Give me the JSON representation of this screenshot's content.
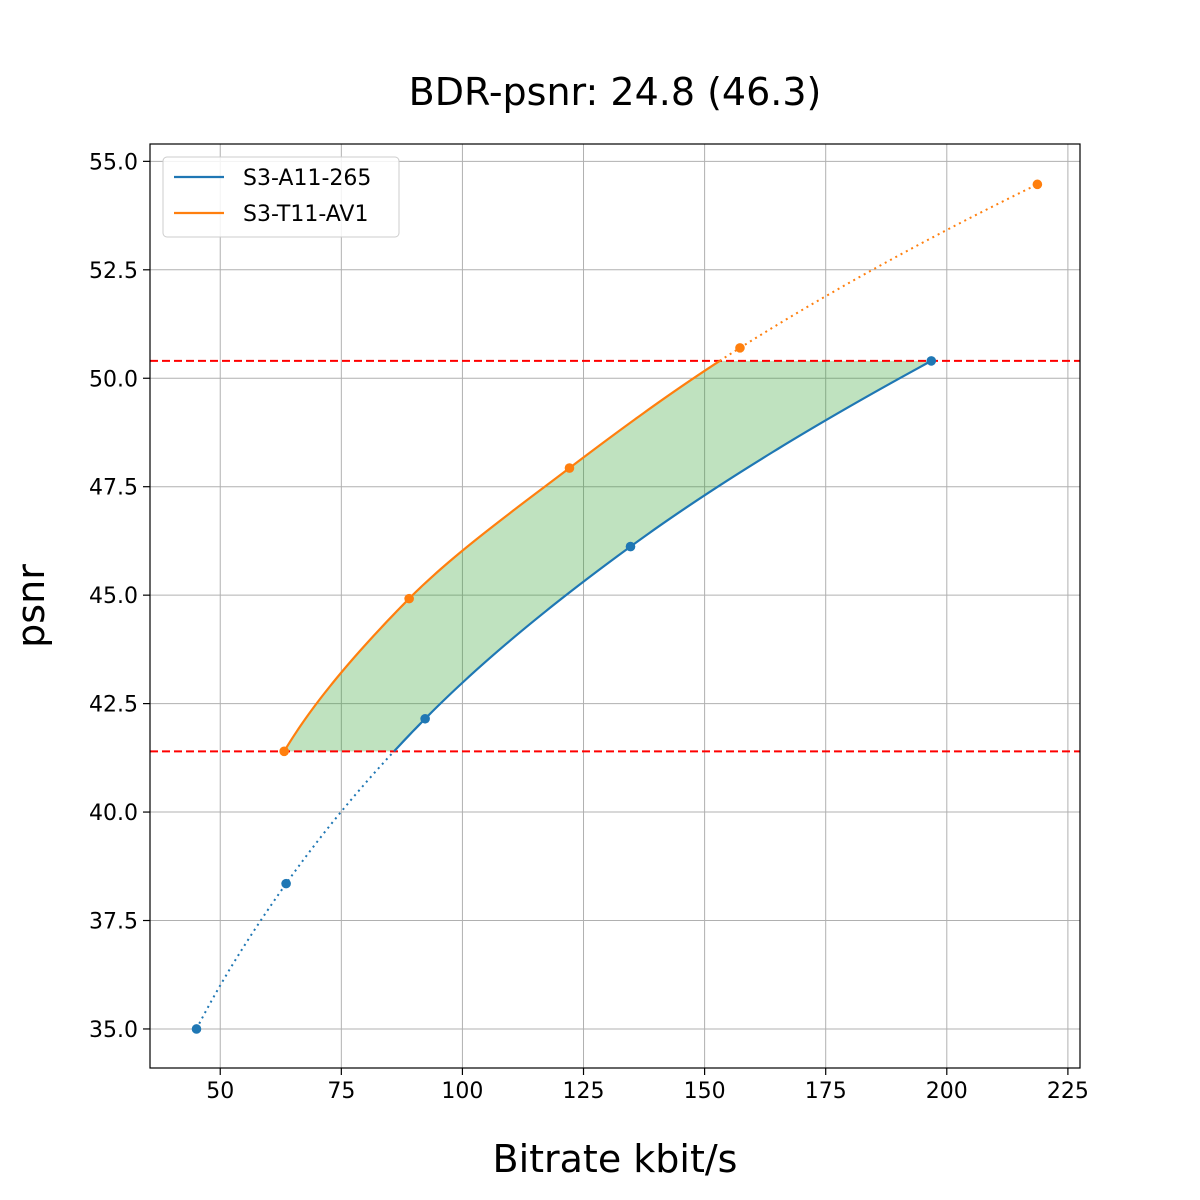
{
  "chart_data": {
    "type": "line",
    "title": "BDR-psnr: 24.8 (46.3)",
    "xlabel": "Bitrate kbit/s",
    "ylabel": "psnr",
    "xlim": [
      35.5,
      227.5
    ],
    "ylim": [
      34.1,
      55.4
    ],
    "xticks": [
      50,
      75,
      100,
      125,
      150,
      175,
      200,
      225
    ],
    "xtick_labels": [
      "50",
      "75",
      "100",
      "125",
      "150",
      "175",
      "200",
      "225"
    ],
    "yticks": [
      35.0,
      37.5,
      40.0,
      42.5,
      45.0,
      47.5,
      50.0,
      52.5,
      55.0
    ],
    "ytick_labels": [
      "35.0",
      "37.5",
      "40.0",
      "42.5",
      "45.0",
      "47.5",
      "50.0",
      "52.5",
      "55.0"
    ],
    "grid": true,
    "legend_position": "top-left",
    "series": [
      {
        "name": "S3-A11-265",
        "color": "#1f77b4",
        "x": [
          45.1,
          63.6,
          92.3,
          134.7,
          196.8
        ],
        "y": [
          35.0,
          38.35,
          42.15,
          46.12,
          50.4
        ]
      },
      {
        "name": "S3-T11-AV1",
        "color": "#ff7f0e",
        "x": [
          63.2,
          89.0,
          122.1,
          157.3,
          218.7
        ],
        "y": [
          41.4,
          44.92,
          47.93,
          50.7,
          54.47
        ]
      }
    ],
    "reference_lines": [
      {
        "y": 50.4,
        "color": "#ff0000",
        "style": "dashed"
      },
      {
        "y": 41.4,
        "color": "#ff0000",
        "style": "dashed"
      }
    ],
    "fill_color": "#2ca02c"
  }
}
